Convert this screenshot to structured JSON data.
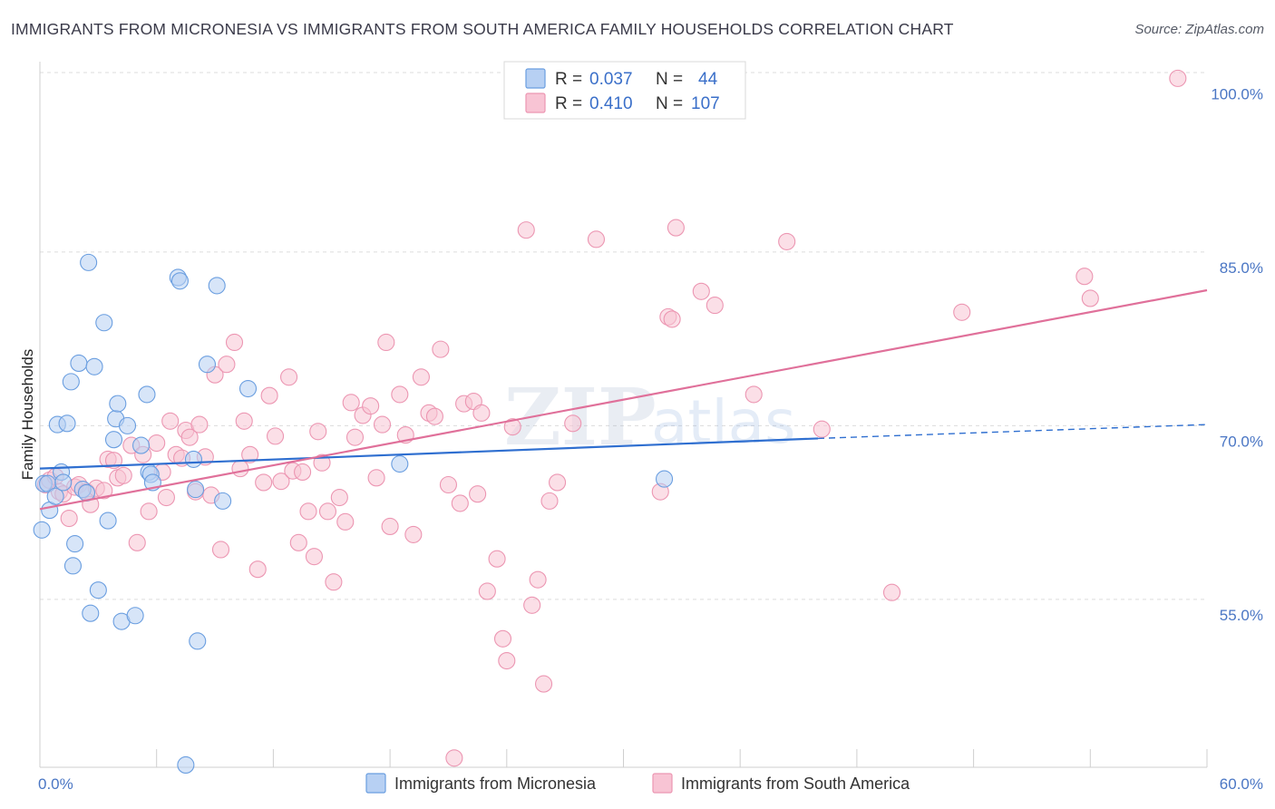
{
  "title": "IMMIGRANTS FROM MICRONESIA VS IMMIGRANTS FROM SOUTH AMERICA FAMILY HOUSEHOLDS CORRELATION CHART",
  "source": "Source: ZipAtlas.com",
  "watermark": {
    "zip": "ZIP",
    "atlas": "atlas"
  },
  "legend_top": [
    {
      "r_label": "R =",
      "r_value": "0.037",
      "n_label": "N =",
      "n_value": "44"
    },
    {
      "r_label": "R =",
      "r_value": "0.410",
      "n_label": "N =",
      "n_value": "107"
    }
  ],
  "colors": {
    "micronesia_fill": "#b7d0f3",
    "micronesia_stroke": "#6a9ee0",
    "micronesia_line": "#2f6fd0",
    "south_america_fill": "#f8c4d4",
    "south_america_stroke": "#ec96b2",
    "south_america_line": "#e0709a",
    "tick_text": "#4a76c4",
    "grid": "#dcdcdc"
  },
  "chart_data": {
    "type": "scatter",
    "xlabel": "",
    "ylabel": "Family Households",
    "xlim": [
      0,
      60
    ],
    "ylim": [
      40,
      102
    ],
    "x_tick_labels": [
      {
        "value": 0,
        "label": "0.0%"
      },
      {
        "value": 60,
        "label": "60.0%"
      }
    ],
    "y_tick_labels": [
      {
        "value": 55,
        "label": "55.0%"
      },
      {
        "value": 70,
        "label": "70.0%"
      },
      {
        "value": 85,
        "label": "85.0%"
      },
      {
        "value": 100,
        "label": "100.0%"
      }
    ],
    "grid": true,
    "legend_position": "bottom",
    "series": [
      {
        "name": "Immigrants from Micronesia",
        "r": 0.037,
        "n": 44,
        "trend": {
          "x0": 0,
          "y0": 66.3,
          "x1": 40,
          "y1": 68.9,
          "dashed_to_x": 60,
          "dashed_to_y": 70.1
        },
        "points": [
          [
            0.1,
            61.0
          ],
          [
            0.2,
            65.0
          ],
          [
            0.4,
            65.0
          ],
          [
            0.5,
            62.7
          ],
          [
            0.8,
            63.9
          ],
          [
            0.9,
            70.1
          ],
          [
            1.1,
            66.0
          ],
          [
            1.2,
            65.1
          ],
          [
            1.4,
            70.2
          ],
          [
            1.6,
            73.8
          ],
          [
            1.7,
            57.9
          ],
          [
            1.8,
            59.8
          ],
          [
            2.0,
            75.4
          ],
          [
            2.2,
            64.5
          ],
          [
            2.4,
            64.2
          ],
          [
            2.5,
            84.1
          ],
          [
            2.6,
            53.8
          ],
          [
            2.8,
            75.1
          ],
          [
            3.0,
            55.8
          ],
          [
            3.3,
            78.9
          ],
          [
            3.5,
            61.8
          ],
          [
            3.8,
            68.8
          ],
          [
            3.9,
            70.6
          ],
          [
            4.0,
            71.9
          ],
          [
            4.2,
            53.1
          ],
          [
            4.5,
            70.0
          ],
          [
            4.9,
            53.6
          ],
          [
            5.2,
            68.3
          ],
          [
            5.5,
            72.7
          ],
          [
            5.6,
            66.0
          ],
          [
            5.7,
            65.8
          ],
          [
            5.8,
            65.1
          ],
          [
            7.1,
            82.8
          ],
          [
            7.2,
            82.5
          ],
          [
            7.5,
            40.7
          ],
          [
            7.9,
            67.1
          ],
          [
            8.0,
            64.5
          ],
          [
            8.1,
            51.4
          ],
          [
            8.6,
            75.3
          ],
          [
            9.1,
            82.1
          ],
          [
            9.4,
            63.5
          ],
          [
            10.7,
            73.2
          ],
          [
            18.5,
            66.7
          ],
          [
            32.1,
            65.4
          ]
        ]
      },
      {
        "name": "Immigrants from South America",
        "r": 0.41,
        "n": 107,
        "trend": {
          "x0": 0,
          "y0": 62.8,
          "x1": 60,
          "y1": 81.7
        },
        "points": [
          [
            0.3,
            64.9
          ],
          [
            0.5,
            65.3
          ],
          [
            0.8,
            65.6
          ],
          [
            1.0,
            64.3
          ],
          [
            1.2,
            64.1
          ],
          [
            1.5,
            62.0
          ],
          [
            1.8,
            64.7
          ],
          [
            2.0,
            64.9
          ],
          [
            2.4,
            64.3
          ],
          [
            2.6,
            63.2
          ],
          [
            2.9,
            64.6
          ],
          [
            3.3,
            64.4
          ],
          [
            3.5,
            67.1
          ],
          [
            3.8,
            67.0
          ],
          [
            4.0,
            65.5
          ],
          [
            4.3,
            65.7
          ],
          [
            4.7,
            68.3
          ],
          [
            5.0,
            59.9
          ],
          [
            5.3,
            67.5
          ],
          [
            5.6,
            62.6
          ],
          [
            6.0,
            68.5
          ],
          [
            6.3,
            66.0
          ],
          [
            6.5,
            63.8
          ],
          [
            6.7,
            70.4
          ],
          [
            7.0,
            67.5
          ],
          [
            7.3,
            67.2
          ],
          [
            7.5,
            69.6
          ],
          [
            7.7,
            69.0
          ],
          [
            8.0,
            64.3
          ],
          [
            8.2,
            70.1
          ],
          [
            8.5,
            67.3
          ],
          [
            8.8,
            64.0
          ],
          [
            9.0,
            74.4
          ],
          [
            9.3,
            59.3
          ],
          [
            9.6,
            75.3
          ],
          [
            10.0,
            77.2
          ],
          [
            10.3,
            66.3
          ],
          [
            10.5,
            70.4
          ],
          [
            10.8,
            67.5
          ],
          [
            11.2,
            57.6
          ],
          [
            11.5,
            65.1
          ],
          [
            11.8,
            72.6
          ],
          [
            12.1,
            69.1
          ],
          [
            12.4,
            65.2
          ],
          [
            12.8,
            74.2
          ],
          [
            13.0,
            66.1
          ],
          [
            13.3,
            59.9
          ],
          [
            13.5,
            66.0
          ],
          [
            13.8,
            62.6
          ],
          [
            14.1,
            58.7
          ],
          [
            14.3,
            69.5
          ],
          [
            14.5,
            66.8
          ],
          [
            14.8,
            62.6
          ],
          [
            15.1,
            56.5
          ],
          [
            15.4,
            63.8
          ],
          [
            15.7,
            61.7
          ],
          [
            16.0,
            72.0
          ],
          [
            16.2,
            69.0
          ],
          [
            16.6,
            70.9
          ],
          [
            17.0,
            71.7
          ],
          [
            17.3,
            65.5
          ],
          [
            17.6,
            70.1
          ],
          [
            17.8,
            77.2
          ],
          [
            18.0,
            61.3
          ],
          [
            18.5,
            72.7
          ],
          [
            18.8,
            69.2
          ],
          [
            19.2,
            60.6
          ],
          [
            19.6,
            74.2
          ],
          [
            20.0,
            71.1
          ],
          [
            20.3,
            70.8
          ],
          [
            20.6,
            76.6
          ],
          [
            21.0,
            64.9
          ],
          [
            21.3,
            41.3
          ],
          [
            21.6,
            63.3
          ],
          [
            21.8,
            71.9
          ],
          [
            22.3,
            72.1
          ],
          [
            22.5,
            64.1
          ],
          [
            22.7,
            71.1
          ],
          [
            23.0,
            55.7
          ],
          [
            23.5,
            58.5
          ],
          [
            23.8,
            51.6
          ],
          [
            24.0,
            49.7
          ],
          [
            24.3,
            69.9
          ],
          [
            25.0,
            86.9
          ],
          [
            25.3,
            54.5
          ],
          [
            25.6,
            56.7
          ],
          [
            25.9,
            47.7
          ],
          [
            26.2,
            63.5
          ],
          [
            26.6,
            65.1
          ],
          [
            27.4,
            70.2
          ],
          [
            28.6,
            86.1
          ],
          [
            30.3,
            100.0
          ],
          [
            31.9,
            64.3
          ],
          [
            32.3,
            79.4
          ],
          [
            32.5,
            79.2
          ],
          [
            32.7,
            87.1
          ],
          [
            34.0,
            81.6
          ],
          [
            34.7,
            80.4
          ],
          [
            36.7,
            72.7
          ],
          [
            38.4,
            85.9
          ],
          [
            40.2,
            69.7
          ],
          [
            43.8,
            55.6
          ],
          [
            47.4,
            79.8
          ],
          [
            53.7,
            82.9
          ],
          [
            54.0,
            81.0
          ],
          [
            58.5,
            100.0
          ]
        ]
      }
    ]
  }
}
